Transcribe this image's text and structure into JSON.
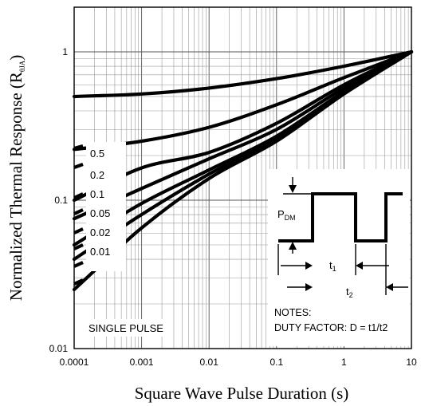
{
  "chart_data": {
    "type": "line",
    "ylabel": "Normalized Thermal Response (R",
    "ylabel_sub": "θJA",
    "ylabel_close": ")",
    "xlabel": "Square Wave Pulse Duration (s)",
    "x_scale": "log",
    "y_scale": "log",
    "xlim": [
      0.0001,
      10
    ],
    "ylim": [
      0.01,
      2
    ],
    "x_ticks": [
      "0.0001",
      "0.001",
      "0.01",
      "0.1",
      "1",
      "10"
    ],
    "y_ticks": [
      "1",
      "0.1",
      "0.01"
    ],
    "grid": true,
    "legend_title": "",
    "series": [
      {
        "name": "0.5",
        "x": [
          0.0001,
          0.001,
          0.01,
          0.1,
          1,
          10
        ],
        "y": [
          0.5,
          0.52,
          0.57,
          0.66,
          0.8,
          1.0
        ]
      },
      {
        "name": "0.2",
        "x": [
          0.0001,
          0.001,
          0.01,
          0.1,
          1,
          10
        ],
        "y": [
          0.22,
          0.25,
          0.31,
          0.44,
          0.67,
          1.0
        ]
      },
      {
        "name": "0.1",
        "x": [
          0.0001,
          0.001,
          0.01,
          0.1,
          1,
          10
        ],
        "y": [
          0.1,
          0.165,
          0.21,
          0.33,
          0.6,
          1.0
        ]
      },
      {
        "name": "0.05",
        "x": [
          0.0001,
          0.001,
          0.01,
          0.1,
          1,
          10
        ],
        "y": [
          0.075,
          0.12,
          0.19,
          0.3,
          0.57,
          1.0
        ]
      },
      {
        "name": "0.02",
        "x": [
          0.0001,
          0.001,
          0.01,
          0.1,
          1,
          10
        ],
        "y": [
          0.05,
          0.095,
          0.16,
          0.27,
          0.54,
          1.0
        ]
      },
      {
        "name": "0.01",
        "x": [
          0.0001,
          0.001,
          0.01,
          0.1,
          1,
          10
        ],
        "y": [
          0.04,
          0.08,
          0.15,
          0.26,
          0.53,
          1.0
        ]
      },
      {
        "name": "SINGLE PULSE",
        "x": [
          0.0001,
          0.001,
          0.01,
          0.1,
          1,
          10
        ],
        "y": [
          0.025,
          0.065,
          0.14,
          0.25,
          0.52,
          1.0
        ]
      }
    ],
    "legend_labels": [
      "0.5",
      "0.2",
      "0.1",
      "0.05",
      "0.02",
      "0.01"
    ],
    "single_pulse_label": "SINGLE PULSE",
    "inset": {
      "pdm_main": "P",
      "pdm_sub": "DM",
      "t1_main": "t",
      "t1_sub": "1",
      "t2_main": "t",
      "t2_sub": "2",
      "notes_title": "NOTES:",
      "duty_factor": "DUTY FACTOR: D = t1/t2"
    }
  }
}
